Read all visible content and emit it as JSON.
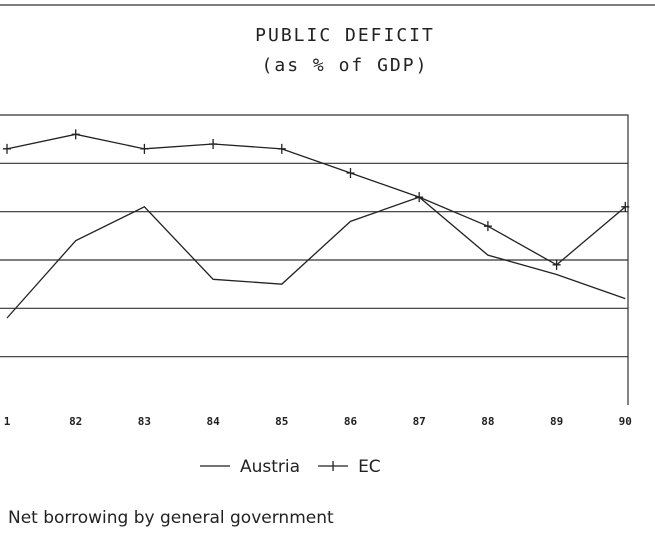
{
  "chart_data": {
    "type": "line",
    "title": "PUBLIC DEFICIT",
    "subtitle": "(as % of GDP)",
    "categories": [
      "1",
      "82",
      "83",
      "84",
      "85",
      "86",
      "87",
      "88",
      "89",
      "90"
    ],
    "series": [
      {
        "name": "Austria",
        "color": "#222222",
        "marker": false,
        "values": [
          1.8,
          3.4,
          4.1,
          2.6,
          2.5,
          3.8,
          4.3,
          3.1,
          2.7,
          2.2
        ]
      },
      {
        "name": "EC",
        "color": "#222222",
        "marker": true,
        "values": [
          5.3,
          5.6,
          5.3,
          5.4,
          5.3,
          4.8,
          4.3,
          3.7,
          2.9,
          4.1
        ]
      }
    ],
    "ylim": [
      0,
      6
    ],
    "yticks": [
      1,
      2,
      3,
      4,
      5
    ],
    "grid": true,
    "note": "Net borrowing by general government"
  }
}
